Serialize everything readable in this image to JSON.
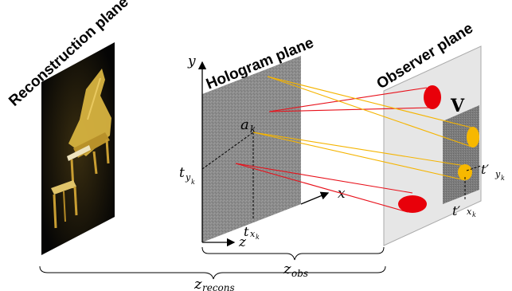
{
  "titles": {
    "reconstruction": "Reconstruction plane",
    "hologram": "Hologram plane",
    "observer": "Observer plane"
  },
  "labels": {
    "y_axis": "y",
    "x_axis": "x",
    "z_axis": "z",
    "a_k": "a",
    "a_k_sub": "k",
    "t_yk": "t",
    "t_yk_sub": "y",
    "t_yk_subsub": "k",
    "t_xk": "t",
    "t_xk_sub": "x",
    "t_xk_subsub": "k",
    "tp_yk": "t′",
    "tp_yk_sub": "y",
    "tp_yk_subsub": "k",
    "tp_xk": "t′",
    "tp_xk_sub": "x",
    "tp_xk_subsub": "k",
    "window": "V",
    "z_obs": "z",
    "z_obs_sub": "obs",
    "z_recons": "z",
    "z_recons_sub": "recons"
  },
  "colors": {
    "red_ray": "#e8101a",
    "yellow_ray": "#f5b400",
    "hologram_plane": "#8a8a8a",
    "observer_plane": "#e6e6e6",
    "window": "#7a7a7a",
    "eye_red": "#e8000a",
    "eye_yellow": "#f7b800"
  }
}
